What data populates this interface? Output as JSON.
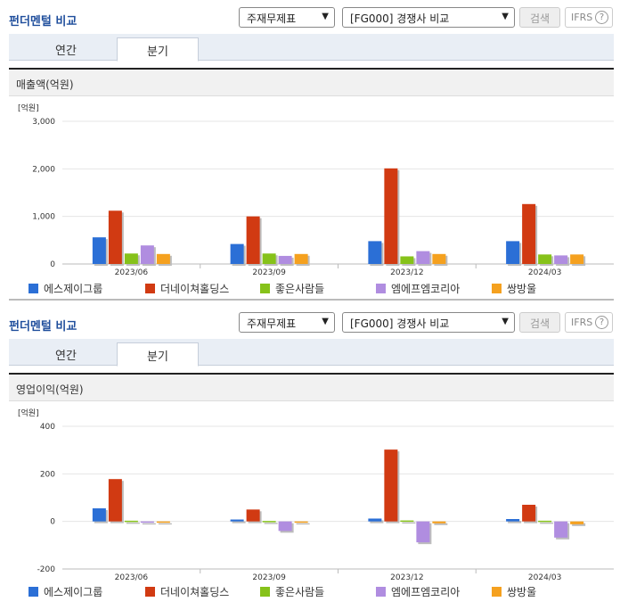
{
  "colors": [
    "#2b6fd6",
    "#d13a12",
    "#86c21a",
    "#b08de0",
    "#f5a11f"
  ],
  "panels": [
    {
      "title": "펀더멘털 비교",
      "select1": "주재무제표",
      "select2": "[FG000] 경쟁사 비교",
      "search_label": "검색",
      "ifrs_label": "IFRS",
      "ifrs_help": "?",
      "tabs": [
        "연간",
        "분기"
      ],
      "active_tab": 1,
      "section_title": "매출액(억원)"
    },
    {
      "title": "펀더멘털 비교",
      "select1": "주재무제표",
      "select2": "[FG000] 경쟁사 비교",
      "search_label": "검색",
      "ifrs_label": "IFRS",
      "ifrs_help": "?",
      "tabs": [
        "연간",
        "분기"
      ],
      "active_tab": 1,
      "section_title": "영업이익(억원)"
    }
  ],
  "chart_data": [
    {
      "type": "bar",
      "unit_label": "[억원]",
      "categories": [
        "2023/06",
        "2023/09",
        "2023/12",
        "2024/03"
      ],
      "yticks": [
        0,
        1000,
        2000,
        3000
      ],
      "ytick_labels": [
        "0",
        "1,000",
        "2,000",
        "3,000"
      ],
      "ylim": [
        0,
        3000
      ],
      "series": [
        {
          "name": "에스제이그룹",
          "values": [
            560,
            420,
            480,
            480
          ]
        },
        {
          "name": "더네이쳐홀딩스",
          "values": [
            1120,
            1000,
            2010,
            1260
          ]
        },
        {
          "name": "좋은사람들",
          "values": [
            220,
            220,
            160,
            200
          ]
        },
        {
          "name": "엠에프엠코리아",
          "values": [
            390,
            170,
            270,
            180
          ]
        },
        {
          "name": "쌍방울",
          "values": [
            210,
            210,
            210,
            200
          ]
        }
      ]
    },
    {
      "type": "bar",
      "unit_label": "[억원]",
      "categories": [
        "2023/06",
        "2023/09",
        "2023/12",
        "2024/03"
      ],
      "yticks": [
        -200,
        0,
        200,
        400
      ],
      "ytick_labels": [
        "-200",
        "0",
        "200",
        "400"
      ],
      "ylim": [
        -200,
        400
      ],
      "series": [
        {
          "name": "에스제이그룹",
          "values": [
            55,
            8,
            12,
            10
          ]
        },
        {
          "name": "더네이쳐홀딩스",
          "values": [
            178,
            50,
            302,
            70
          ]
        },
        {
          "name": "좋은사람들",
          "values": [
            3,
            2,
            4,
            3
          ]
        },
        {
          "name": "엠에프엠코리아",
          "values": [
            -3,
            -40,
            -88,
            -68
          ]
        },
        {
          "name": "쌍방울",
          "values": [
            -3,
            -1,
            -8,
            -12
          ]
        }
      ]
    }
  ]
}
